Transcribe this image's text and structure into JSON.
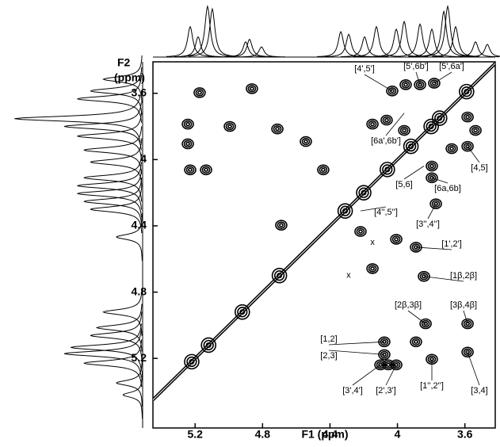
{
  "chart_data": {
    "type": "contour2d",
    "x_label": "F1 (ppm)",
    "y_label_top": "F2",
    "y_label_unit": "(ppm)",
    "xlim": [
      5.45,
      3.42
    ],
    "ylim": [
      3.41,
      5.62
    ],
    "xticks": [
      5.2,
      4.8,
      4.4,
      4.0,
      3.6
    ],
    "yticks": [
      3.6,
      4.0,
      4.4,
      4.8,
      5.2
    ],
    "color": "#000000",
    "cross_peaks": {
      "x": [
        5.173,
        4.863,
        5.243,
        5.243,
        4.994,
        4.712,
        5.229,
        5.135,
        4.44,
        4.543,
        4.689,
        4.219,
        4.064,
        4.148,
        4.031,
        3.951,
        3.866,
        3.782,
        3.584,
        3.584,
        3.678,
        3.796,
        3.796,
        3.772,
        4.007,
        3.89,
        4.148,
        3.843,
        3.833,
        3.584,
        4.078,
        4.078,
        3.89,
        3.796,
        3.584,
        4.101,
        4.054,
        4.007,
        3.96,
        3.537
      ],
      "y": [
        3.596,
        3.572,
        3.786,
        3.905,
        3.8,
        3.815,
        4.062,
        4.062,
        4.062,
        3.891,
        4.396,
        4.434,
        3.762,
        3.786,
        3.586,
        3.548,
        3.548,
        3.539,
        3.743,
        3.92,
        3.934,
        4.039,
        4.11,
        4.267,
        4.481,
        4.529,
        4.658,
        4.705,
        4.991,
        4.991,
        5.1,
        5.177,
        5.1,
        5.205,
        5.162,
        5.239,
        5.239,
        5.239,
        3.824,
        3.824
      ]
    },
    "diagonal_peaks": [
      3.59,
      3.75,
      3.8,
      3.92,
      4.06,
      4.2,
      4.31,
      4.7,
      4.92,
      5.12,
      5.22
    ],
    "top_projection": {
      "ppm": [
        5.229,
        5.182,
        5.126,
        5.098,
        4.9,
        4.877,
        4.806,
        4.336,
        4.289,
        4.195,
        4.125,
        4.007,
        3.96,
        3.866,
        3.796,
        3.725,
        3.702,
        3.655,
        3.537,
        3.467
      ],
      "heights": [
        0.6,
        0.4,
        1.0,
        0.95,
        0.3,
        0.35,
        0.2,
        0.5,
        0.45,
        0.4,
        0.6,
        0.55,
        0.7,
        0.65,
        0.55,
        0.9,
        1.0,
        0.6,
        0.3,
        0.25
      ]
    },
    "left_projection": {
      "ppm": [
        3.515,
        3.586,
        3.634,
        3.753,
        3.8,
        3.858,
        3.943,
        4.015,
        4.11,
        4.158,
        4.205,
        4.253,
        4.3,
        4.467,
        4.92,
        5.015,
        5.062,
        5.134,
        5.172,
        5.229,
        5.348,
        5.42
      ],
      "heights": [
        0.3,
        0.4,
        0.5,
        0.98,
        0.6,
        0.5,
        0.45,
        0.4,
        0.45,
        0.5,
        0.5,
        0.45,
        0.4,
        0.2,
        0.3,
        0.35,
        0.4,
        0.55,
        0.6,
        0.45,
        0.2,
        0.15
      ]
    },
    "annotations": [
      {
        "text": "[4',5']",
        "x": 4.031,
        "y": 3.586
      },
      {
        "text": "[5',6b']",
        "x": 3.866,
        "y": 3.548
      },
      {
        "text": "[5',6a']",
        "x": 3.782,
        "y": 3.539
      },
      {
        "text": "[6a',6b']",
        "x": 3.96,
        "y": 3.72
      },
      {
        "text": "[5,6]",
        "x": 3.843,
        "y": 4.039
      },
      {
        "text": "[6a,6b]",
        "x": 3.796,
        "y": 4.11
      },
      {
        "text": "[4,5]",
        "x": 3.584,
        "y": 3.92
      },
      {
        "text": "[3'',4'']",
        "x": 3.772,
        "y": 4.267
      },
      {
        "text": "[4'',5'']",
        "x": 4.219,
        "y": 4.31
      },
      {
        "text": "[1',2']",
        "x": 3.89,
        "y": 4.529
      },
      {
        "text": "[1β,2β]",
        "x": 3.843,
        "y": 4.705
      },
      {
        "text": "[2β,3β]",
        "x": 3.833,
        "y": 4.991
      },
      {
        "text": "[3β,4β]",
        "x": 3.584,
        "y": 4.991
      },
      {
        "text": "[1,2]",
        "x": 4.078,
        "y": 5.1
      },
      {
        "text": "[2,3]",
        "x": 4.078,
        "y": 5.177
      },
      {
        "text": "[3,4]",
        "x": 3.584,
        "y": 5.162
      },
      {
        "text": "[3',4']",
        "x": 4.101,
        "y": 5.239
      },
      {
        "text": "[2',3']",
        "x": 4.007,
        "y": 5.239
      },
      {
        "text": "[1'',2'']",
        "x": 3.796,
        "y": 5.205
      }
    ],
    "markers": [
      {
        "text": "x",
        "x": 4.148,
        "y": 4.5
      },
      {
        "text": "x",
        "x": 4.29,
        "y": 4.7
      }
    ]
  }
}
